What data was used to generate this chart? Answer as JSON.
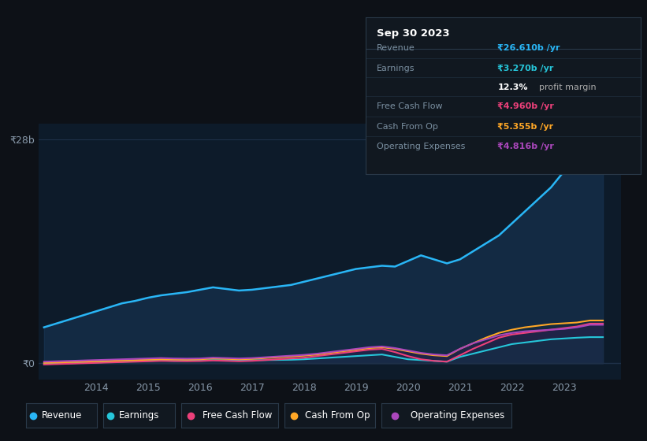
{
  "background_color": "#0d1117",
  "plot_bg_color": "#0d1b2a",
  "grid_color": "#1e3048",
  "tick_color": "#8899aa",
  "years": [
    2013.0,
    2013.25,
    2013.5,
    2013.75,
    2014.0,
    2014.25,
    2014.5,
    2014.75,
    2015.0,
    2015.25,
    2015.5,
    2015.75,
    2016.0,
    2016.25,
    2016.5,
    2016.75,
    2017.0,
    2017.25,
    2017.5,
    2017.75,
    2018.0,
    2018.25,
    2018.5,
    2018.75,
    2019.0,
    2019.25,
    2019.5,
    2019.75,
    2020.0,
    2020.25,
    2020.5,
    2020.75,
    2021.0,
    2021.25,
    2021.5,
    2021.75,
    2022.0,
    2022.25,
    2022.5,
    2022.75,
    2023.0,
    2023.25,
    2023.5,
    2023.75
  ],
  "revenue": [
    4.5,
    5.0,
    5.5,
    6.0,
    6.5,
    7.0,
    7.5,
    7.8,
    8.2,
    8.5,
    8.7,
    8.9,
    9.2,
    9.5,
    9.3,
    9.1,
    9.2,
    9.4,
    9.6,
    9.8,
    10.2,
    10.6,
    11.0,
    11.4,
    11.8,
    12.0,
    12.2,
    12.1,
    12.8,
    13.5,
    13.0,
    12.5,
    13.0,
    14.0,
    15.0,
    16.0,
    17.5,
    19.0,
    20.5,
    22.0,
    24.0,
    25.5,
    26.6,
    26.61
  ],
  "earnings": [
    -0.1,
    -0.05,
    0.0,
    0.05,
    0.1,
    0.15,
    0.2,
    0.25,
    0.3,
    0.35,
    0.3,
    0.32,
    0.35,
    0.4,
    0.38,
    0.36,
    0.38,
    0.4,
    0.42,
    0.44,
    0.5,
    0.6,
    0.7,
    0.8,
    0.9,
    1.0,
    1.1,
    0.8,
    0.5,
    0.4,
    0.3,
    0.2,
    0.8,
    1.2,
    1.6,
    2.0,
    2.4,
    2.6,
    2.8,
    3.0,
    3.1,
    3.2,
    3.27,
    3.27
  ],
  "free_cash_flow": [
    -0.15,
    -0.1,
    -0.05,
    0.0,
    0.05,
    0.1,
    0.15,
    0.2,
    0.25,
    0.3,
    0.28,
    0.26,
    0.28,
    0.35,
    0.3,
    0.25,
    0.3,
    0.4,
    0.5,
    0.6,
    0.7,
    0.9,
    1.1,
    1.3,
    1.5,
    1.7,
    1.8,
    1.4,
    0.9,
    0.5,
    0.3,
    0.2,
    1.0,
    1.8,
    2.5,
    3.2,
    3.6,
    3.8,
    4.0,
    4.2,
    4.4,
    4.6,
    4.96,
    4.96
  ],
  "cash_from_op": [
    0.05,
    0.1,
    0.15,
    0.2,
    0.25,
    0.3,
    0.35,
    0.4,
    0.45,
    0.5,
    0.48,
    0.46,
    0.5,
    0.6,
    0.55,
    0.5,
    0.55,
    0.65,
    0.75,
    0.85,
    0.95,
    1.1,
    1.3,
    1.5,
    1.7,
    1.9,
    2.0,
    1.8,
    1.5,
    1.2,
    1.0,
    0.9,
    1.8,
    2.5,
    3.2,
    3.8,
    4.2,
    4.5,
    4.7,
    4.9,
    5.0,
    5.1,
    5.355,
    5.355
  ],
  "op_expenses": [
    0.2,
    0.25,
    0.3,
    0.35,
    0.4,
    0.45,
    0.5,
    0.55,
    0.6,
    0.65,
    0.6,
    0.58,
    0.6,
    0.7,
    0.65,
    0.6,
    0.65,
    0.75,
    0.85,
    0.95,
    1.05,
    1.2,
    1.4,
    1.6,
    1.8,
    2.0,
    2.1,
    1.9,
    1.6,
    1.3,
    1.1,
    1.0,
    1.8,
    2.5,
    3.0,
    3.5,
    3.8,
    4.0,
    4.1,
    4.2,
    4.3,
    4.5,
    4.816,
    4.816
  ],
  "revenue_color": "#29b6f6",
  "revenue_fill": "#1a3a5c",
  "earnings_color": "#26c6da",
  "free_cash_flow_color": "#ec407a",
  "cash_from_op_color": "#ffa726",
  "op_expenses_color": "#ab47bc",
  "ytick_labels": [
    "₹0",
    "₹28b"
  ],
  "ytick_vals": [
    0,
    28
  ],
  "xtick_labels": [
    "2014",
    "2015",
    "2016",
    "2017",
    "2018",
    "2019",
    "2020",
    "2021",
    "2022",
    "2023"
  ],
  "xtick_vals": [
    2014,
    2015,
    2016,
    2017,
    2018,
    2019,
    2020,
    2021,
    2022,
    2023
  ],
  "legend_labels": [
    "Revenue",
    "Earnings",
    "Free Cash Flow",
    "Cash From Op",
    "Operating Expenses"
  ],
  "legend_colors": [
    "#29b6f6",
    "#26c6da",
    "#ec407a",
    "#ffa726",
    "#ab47bc"
  ],
  "tooltip_title": "Sep 30 2023",
  "tooltip_bg": "#111820",
  "tooltip_border": "#2a3a4a",
  "tooltip_divider": "#2a3a4a",
  "row_divider": "#1e2e3e",
  "row_data": [
    {
      "label": "Revenue",
      "value": "₹26.610b /yr",
      "value_color": "#29b6f6",
      "bold_prefix": null
    },
    {
      "label": "Earnings",
      "value": "₹3.270b /yr",
      "value_color": "#26c6da",
      "bold_prefix": null
    },
    {
      "label": "",
      "value": "12.3% profit margin",
      "value_color": "#aaaaaa",
      "bold_prefix": "12.3%"
    },
    {
      "label": "Free Cash Flow",
      "value": "₹4.960b /yr",
      "value_color": "#ec407a",
      "bold_prefix": null
    },
    {
      "label": "Cash From Op",
      "value": "₹5.355b /yr",
      "value_color": "#ffa726",
      "bold_prefix": null
    },
    {
      "label": "Operating Expenses",
      "value": "₹4.816b /yr",
      "value_color": "#ab47bc",
      "bold_prefix": null
    }
  ],
  "xlim": [
    2012.9,
    2024.1
  ],
  "ylim": [
    -2,
    30
  ]
}
